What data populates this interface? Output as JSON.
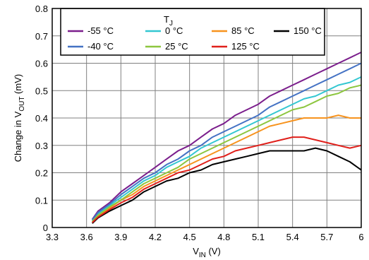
{
  "chart_data": {
    "type": "line",
    "title": "",
    "xlabel": {
      "main": "V",
      "sub": "IN",
      "unit": " (V)"
    },
    "ylabel": {
      "main": "Change in V",
      "sub": "OUT",
      "unit": " (mV)"
    },
    "xlim": [
      3.3,
      6.0
    ],
    "ylim": [
      0,
      0.8
    ],
    "xticks": [
      "3.3",
      "3.6",
      "3.9",
      "4.2",
      "4.5",
      "4.8",
      "5.1",
      "5.4",
      "5.7",
      "6"
    ],
    "yticks": [
      "0",
      "0.1",
      "0.2",
      "0.3",
      "0.4",
      "0.5",
      "0.6",
      "0.7",
      "0.8"
    ],
    "grid": true,
    "legend": {
      "title_main": "T",
      "title_sub": "J",
      "placement": "top-right"
    },
    "series": [
      {
        "name": "-55 °C",
        "color": "#7B1E8C",
        "x": [
          3.65,
          3.7,
          3.8,
          3.9,
          4.0,
          4.1,
          4.2,
          4.3,
          4.4,
          4.5,
          4.6,
          4.7,
          4.8,
          4.9,
          5.0,
          5.1,
          5.2,
          5.3,
          5.4,
          5.5,
          5.6,
          5.7,
          5.8,
          5.9,
          6.0
        ],
        "y": [
          0.03,
          0.06,
          0.09,
          0.13,
          0.16,
          0.19,
          0.22,
          0.25,
          0.28,
          0.3,
          0.33,
          0.36,
          0.38,
          0.41,
          0.43,
          0.45,
          0.48,
          0.5,
          0.52,
          0.54,
          0.56,
          0.58,
          0.6,
          0.62,
          0.64
        ]
      },
      {
        "name": "0 °C",
        "color": "#33C7D1",
        "x": [
          3.65,
          3.7,
          3.8,
          3.9,
          4.0,
          4.1,
          4.2,
          4.3,
          4.4,
          4.5,
          4.6,
          4.7,
          4.8,
          4.9,
          5.0,
          5.1,
          5.2,
          5.3,
          5.4,
          5.5,
          5.6,
          5.7,
          5.8,
          5.9,
          6.0
        ],
        "y": [
          0.025,
          0.05,
          0.08,
          0.11,
          0.14,
          0.17,
          0.19,
          0.22,
          0.24,
          0.26,
          0.29,
          0.31,
          0.33,
          0.35,
          0.37,
          0.39,
          0.41,
          0.43,
          0.45,
          0.47,
          0.48,
          0.5,
          0.52,
          0.53,
          0.55
        ]
      },
      {
        "name": "85 °C",
        "color": "#F7931E",
        "x": [
          3.65,
          3.7,
          3.8,
          3.9,
          4.0,
          4.1,
          4.2,
          4.3,
          4.4,
          4.5,
          4.6,
          4.7,
          4.8,
          4.9,
          5.0,
          5.1,
          5.2,
          5.3,
          5.4,
          5.5,
          5.6,
          5.7,
          5.8,
          5.9,
          6.0
        ],
        "y": [
          0.02,
          0.04,
          0.07,
          0.1,
          0.12,
          0.15,
          0.17,
          0.19,
          0.21,
          0.23,
          0.25,
          0.27,
          0.29,
          0.31,
          0.33,
          0.35,
          0.37,
          0.38,
          0.39,
          0.4,
          0.4,
          0.4,
          0.41,
          0.4,
          0.4
        ]
      },
      {
        "name": "150 °C",
        "color": "#000000",
        "x": [
          3.65,
          3.7,
          3.8,
          3.9,
          4.0,
          4.1,
          4.2,
          4.3,
          4.4,
          4.5,
          4.6,
          4.7,
          4.8,
          4.9,
          5.0,
          5.1,
          5.2,
          5.3,
          5.4,
          5.5,
          5.6,
          5.7,
          5.8,
          5.9,
          6.0
        ],
        "y": [
          0.015,
          0.035,
          0.06,
          0.08,
          0.1,
          0.13,
          0.15,
          0.17,
          0.18,
          0.2,
          0.21,
          0.23,
          0.24,
          0.25,
          0.26,
          0.27,
          0.28,
          0.28,
          0.28,
          0.28,
          0.29,
          0.28,
          0.26,
          0.24,
          0.21
        ]
      },
      {
        "name": "-40 °C",
        "color": "#4472C4",
        "x": [
          3.65,
          3.7,
          3.8,
          3.9,
          4.0,
          4.1,
          4.2,
          4.3,
          4.4,
          4.5,
          4.6,
          4.7,
          4.8,
          4.9,
          5.0,
          5.1,
          5.2,
          5.3,
          5.4,
          5.5,
          5.6,
          5.7,
          5.8,
          5.9,
          6.0
        ],
        "y": [
          0.028,
          0.055,
          0.085,
          0.12,
          0.15,
          0.18,
          0.2,
          0.23,
          0.25,
          0.28,
          0.3,
          0.33,
          0.35,
          0.37,
          0.39,
          0.41,
          0.44,
          0.46,
          0.48,
          0.5,
          0.52,
          0.54,
          0.56,
          0.58,
          0.6
        ]
      },
      {
        "name": "25 °C",
        "color": "#8DC63F",
        "x": [
          3.65,
          3.7,
          3.8,
          3.9,
          4.0,
          4.1,
          4.2,
          4.3,
          4.4,
          4.5,
          4.6,
          4.7,
          4.8,
          4.9,
          5.0,
          5.1,
          5.2,
          5.3,
          5.4,
          5.5,
          5.6,
          5.7,
          5.8,
          5.9,
          6.0
        ],
        "y": [
          0.022,
          0.045,
          0.075,
          0.1,
          0.13,
          0.16,
          0.18,
          0.2,
          0.22,
          0.25,
          0.27,
          0.29,
          0.31,
          0.33,
          0.35,
          0.37,
          0.39,
          0.41,
          0.43,
          0.44,
          0.46,
          0.48,
          0.49,
          0.51,
          0.52
        ]
      },
      {
        "name": "125 °C",
        "color": "#E0201B",
        "x": [
          3.65,
          3.7,
          3.8,
          3.9,
          4.0,
          4.1,
          4.2,
          4.3,
          4.4,
          4.5,
          4.6,
          4.7,
          4.8,
          4.9,
          5.0,
          5.1,
          5.2,
          5.3,
          5.4,
          5.5,
          5.6,
          5.7,
          5.8,
          5.9,
          6.0
        ],
        "y": [
          0.018,
          0.038,
          0.065,
          0.09,
          0.11,
          0.14,
          0.16,
          0.18,
          0.2,
          0.21,
          0.23,
          0.25,
          0.26,
          0.28,
          0.29,
          0.3,
          0.31,
          0.32,
          0.33,
          0.33,
          0.32,
          0.31,
          0.3,
          0.29,
          0.3
        ]
      }
    ]
  }
}
